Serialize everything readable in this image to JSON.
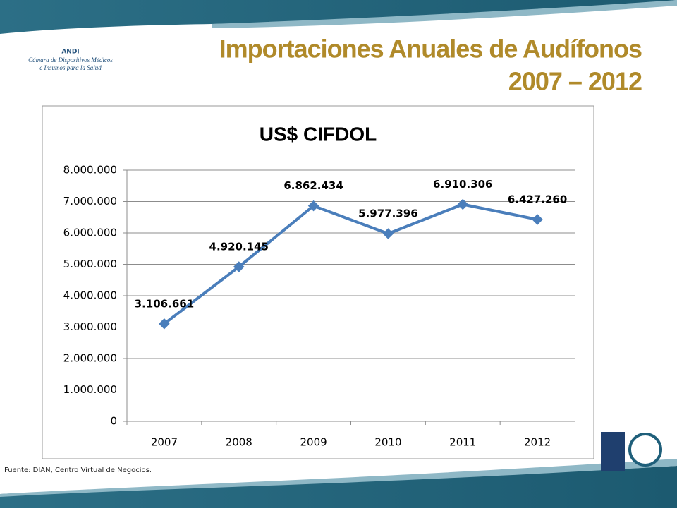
{
  "header": {
    "title_line1": "Importaciones Anuales de Audífonos",
    "title_line2": "2007 – 2012",
    "logo_name": "ANDI",
    "logo_line1": "Cámara de Dispositivos Médicos",
    "logo_line2": "e Insumos para la Salud"
  },
  "footer": {
    "source": "Fuente: DIAN, Centro Virtual de Negocios."
  },
  "chart_data": {
    "type": "line",
    "title": "US$ CIFDOL",
    "categories": [
      "2007",
      "2008",
      "2009",
      "2010",
      "2011",
      "2012"
    ],
    "series": [
      {
        "name": "US$ CIFDOL",
        "color": "#4a7ebb",
        "values": [
          3106661,
          4920145,
          6862434,
          5977396,
          6910306,
          6427260
        ],
        "value_labels": [
          "3.106.661",
          "4.920.145",
          "6.862.434",
          "5.977.396",
          "6.910.306",
          "6.427.260"
        ]
      }
    ],
    "ylim": [
      0,
      8000000
    ],
    "yticks": [
      0,
      {
        "value": 1000000,
        "label": "1.000.000"
      },
      {
        "value": 2000000,
        "label": "2.000.000"
      },
      {
        "value": 3000000,
        "label": "3.000.000"
      },
      {
        "value": 4000000,
        "label": "4.000.000"
      },
      {
        "value": 5000000,
        "label": "5.000.000"
      },
      {
        "value": 6000000,
        "label": "6.000.000"
      },
      {
        "value": 7000000,
        "label": "7.000.000"
      },
      {
        "value": 8000000,
        "label": "8.000.000"
      }
    ],
    "grid": true
  }
}
